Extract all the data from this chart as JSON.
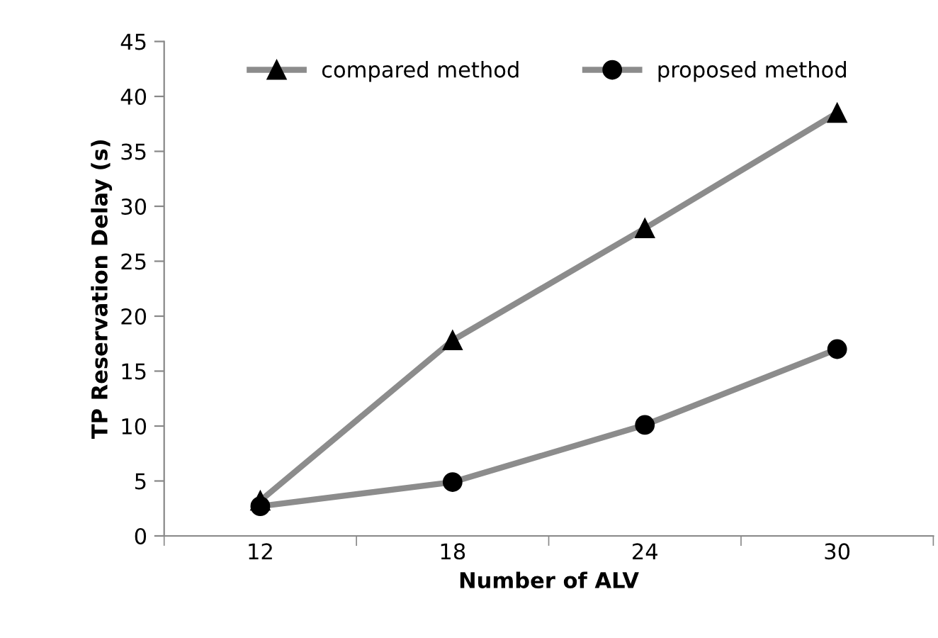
{
  "chart_data": {
    "type": "line",
    "xlabel": "Number of ALV",
    "ylabel": "TP Reservation Delay (s)",
    "categories": [
      "12",
      "18",
      "24",
      "30"
    ],
    "series": [
      {
        "name": "compared method",
        "color": "#8c8c8c",
        "marker": "triangle",
        "values": [
          3.2,
          17.8,
          28,
          38.5
        ]
      },
      {
        "name": "proposed method",
        "color": "#8c8c8c",
        "marker": "circle",
        "values": [
          2.7,
          4.9,
          10.1,
          17
        ]
      }
    ],
    "ylim": [
      0,
      45
    ],
    "yticks": [
      0,
      5,
      10,
      15,
      20,
      25,
      30,
      35,
      40,
      45
    ],
    "grid": false,
    "legend": "top",
    "line_style": "solid"
  }
}
